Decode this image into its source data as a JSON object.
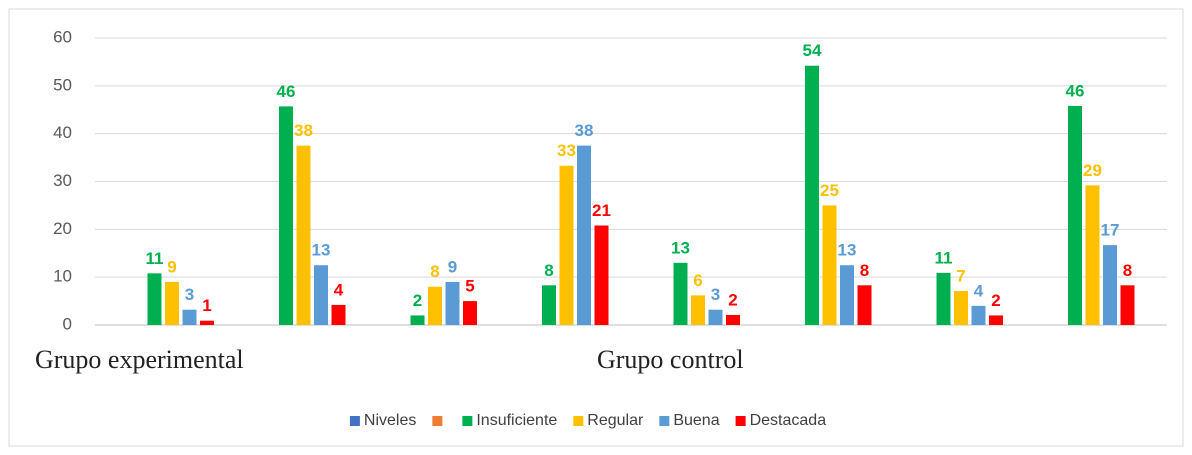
{
  "chart_data": {
    "type": "bar",
    "categories": [
      null,
      null,
      null,
      null,
      null,
      null,
      null,
      null
    ],
    "group_labels": [
      "Grupo experimental",
      "Grupo control"
    ],
    "series": [
      {
        "name": "Niveles",
        "color": "#4472c4",
        "values": [
          null,
          null,
          null,
          null,
          null,
          null,
          null,
          null
        ]
      },
      {
        "name": null,
        "color": "#ed7d31",
        "values": [
          null,
          null,
          null,
          null,
          null,
          null,
          null,
          null
        ]
      },
      {
        "name": "Insuficiente",
        "color": "#00b050",
        "values": [
          10.8,
          45.7,
          2,
          8.3,
          13,
          54.2,
          10.9,
          45.8
        ],
        "value_labels": [
          "11",
          "46",
          "2",
          "8",
          "13",
          "54",
          "11",
          "46"
        ]
      },
      {
        "name": "Regular",
        "color": "#ffc000",
        "values": [
          9,
          37.5,
          8,
          33.3,
          6.2,
          25,
          7.1,
          29.2
        ],
        "value_labels": [
          "9",
          "38",
          "8",
          "33",
          "6",
          "25",
          "7",
          "29"
        ]
      },
      {
        "name": "Buena",
        "color": "#5b9bd5",
        "values": [
          3.2,
          12.5,
          9,
          37.5,
          3.2,
          12.5,
          4,
          16.7
        ],
        "value_labels": [
          "3",
          "13",
          "9",
          "38",
          "3",
          "13",
          "4",
          "17"
        ]
      },
      {
        "name": "Destacada",
        "color": "#ff0000",
        "values": [
          0.9,
          4.2,
          5,
          20.8,
          2.1,
          8.3,
          2,
          8.3
        ],
        "value_labels": [
          "1",
          "4",
          "5",
          "21",
          "2",
          "8",
          "2",
          "8"
        ]
      }
    ],
    "ylim": [
      0,
      60
    ],
    "yticks": [
      0,
      10,
      20,
      30,
      40,
      50,
      60
    ],
    "grid": true,
    "legend": "bottom"
  }
}
